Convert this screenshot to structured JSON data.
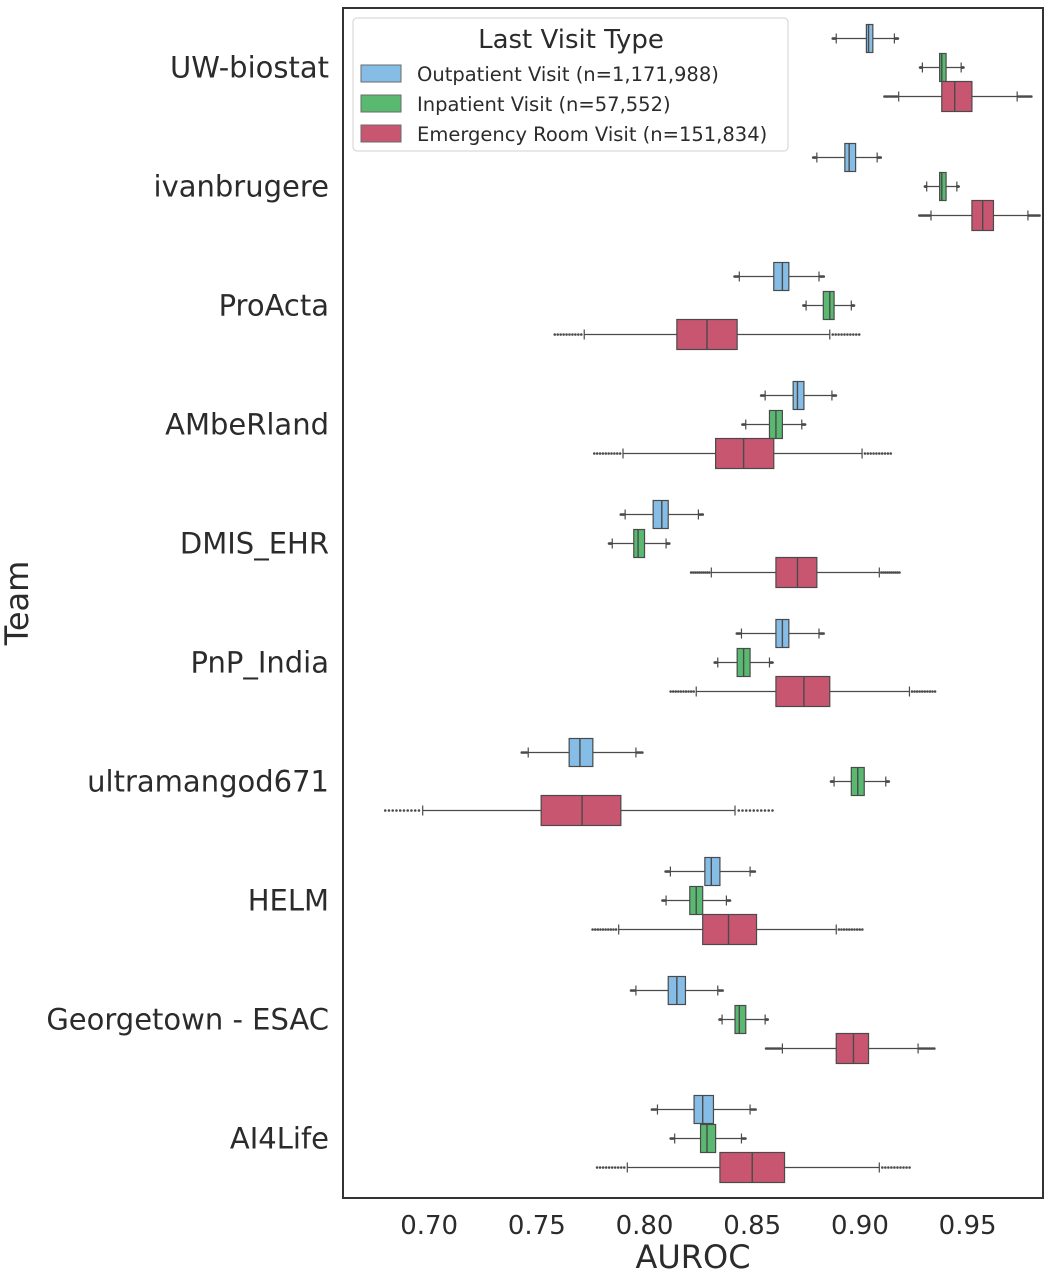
{
  "chart_data": {
    "type": "boxplot-horizontal",
    "xlabel": "AUROC",
    "ylabel": "Team",
    "xlim": [
      0.66,
      0.985
    ],
    "xticks": [
      "0.70",
      "0.75",
      "0.80",
      "0.85",
      "0.90",
      "0.95"
    ],
    "grid": false,
    "legend": {
      "title": "Last Visit Type",
      "placement": "top-left"
    },
    "categories": [
      "UW-biostat",
      "ivanbrugere",
      "ProActa",
      "AMbeRland",
      "DMIS_EHR",
      "PnP_India",
      "ultramangod671",
      "HELM",
      "Georgetown - ESAC",
      "AI4Life"
    ],
    "series": [
      {
        "name": "Outpatient Visit (n=1,171,988)",
        "color": "#85bde6",
        "boxes": [
          {
            "min": 0.889,
            "q1": 0.903,
            "median": 0.904,
            "q3": 0.906,
            "max": 0.916
          },
          {
            "min": 0.88,
            "q1": 0.893,
            "median": 0.895,
            "q3": 0.898,
            "max": 0.908
          },
          {
            "min": 0.844,
            "q1": 0.86,
            "median": 0.864,
            "q3": 0.867,
            "max": 0.881
          },
          {
            "min": 0.856,
            "q1": 0.869,
            "median": 0.871,
            "q3": 0.874,
            "max": 0.887
          },
          {
            "min": 0.791,
            "q1": 0.804,
            "median": 0.808,
            "q3": 0.811,
            "max": 0.825
          },
          {
            "min": 0.845,
            "q1": 0.861,
            "median": 0.864,
            "q3": 0.867,
            "max": 0.881
          },
          {
            "min": 0.746,
            "q1": 0.765,
            "median": 0.77,
            "q3": 0.776,
            "max": 0.796
          },
          {
            "min": 0.812,
            "q1": 0.828,
            "median": 0.831,
            "q3": 0.835,
            "max": 0.849
          },
          {
            "min": 0.796,
            "q1": 0.811,
            "median": 0.815,
            "q3": 0.819,
            "max": 0.834
          },
          {
            "min": 0.806,
            "q1": 0.823,
            "median": 0.827,
            "q3": 0.832,
            "max": 0.849
          }
        ]
      },
      {
        "name": "Inpatient Visit (n=57,552)",
        "color": "#5ab971",
        "boxes": [
          {
            "min": 0.929,
            "q1": 0.937,
            "median": 0.938,
            "q3": 0.94,
            "max": 0.947
          },
          {
            "min": 0.931,
            "q1": 0.937,
            "median": 0.938,
            "q3": 0.94,
            "max": 0.945
          },
          {
            "min": 0.875,
            "q1": 0.883,
            "median": 0.886,
            "q3": 0.888,
            "max": 0.896
          },
          {
            "min": 0.847,
            "q1": 0.858,
            "median": 0.861,
            "q3": 0.864,
            "max": 0.873
          },
          {
            "min": 0.785,
            "q1": 0.795,
            "median": 0.797,
            "q3": 0.8,
            "max": 0.81
          },
          {
            "min": 0.834,
            "q1": 0.843,
            "median": 0.846,
            "q3": 0.849,
            "max": 0.858
          },
          {
            "min": 0.888,
            "q1": 0.896,
            "median": 0.899,
            "q3": 0.902,
            "max": 0.912
          },
          {
            "min": 0.81,
            "q1": 0.821,
            "median": 0.824,
            "q3": 0.827,
            "max": 0.838
          },
          {
            "min": 0.836,
            "q1": 0.842,
            "median": 0.844,
            "q3": 0.847,
            "max": 0.856
          },
          {
            "min": 0.814,
            "q1": 0.826,
            "median": 0.829,
            "q3": 0.833,
            "max": 0.845
          }
        ]
      },
      {
        "name": "Emergency Room Visit (n=151,834)",
        "color": "#c95671",
        "boxes": [
          {
            "min": 0.918,
            "q1": 0.938,
            "median": 0.944,
            "q3": 0.952,
            "max": 0.973
          },
          {
            "min": 0.933,
            "q1": 0.952,
            "median": 0.957,
            "q3": 0.962,
            "max": 0.978
          },
          {
            "min": 0.772,
            "q1": 0.815,
            "median": 0.829,
            "q3": 0.843,
            "max": 0.886
          },
          {
            "min": 0.79,
            "q1": 0.833,
            "median": 0.846,
            "q3": 0.86,
            "max": 0.901
          },
          {
            "min": 0.831,
            "q1": 0.861,
            "median": 0.871,
            "q3": 0.88,
            "max": 0.909
          },
          {
            "min": 0.824,
            "q1": 0.861,
            "median": 0.874,
            "q3": 0.886,
            "max": 0.923
          },
          {
            "min": 0.697,
            "q1": 0.752,
            "median": 0.771,
            "q3": 0.789,
            "max": 0.842
          },
          {
            "min": 0.788,
            "q1": 0.827,
            "median": 0.839,
            "q3": 0.852,
            "max": 0.889
          },
          {
            "min": 0.864,
            "q1": 0.889,
            "median": 0.897,
            "q3": 0.904,
            "max": 0.927
          },
          {
            "min": 0.792,
            "q1": 0.835,
            "median": 0.85,
            "q3": 0.865,
            "max": 0.909
          }
        ]
      }
    ]
  }
}
